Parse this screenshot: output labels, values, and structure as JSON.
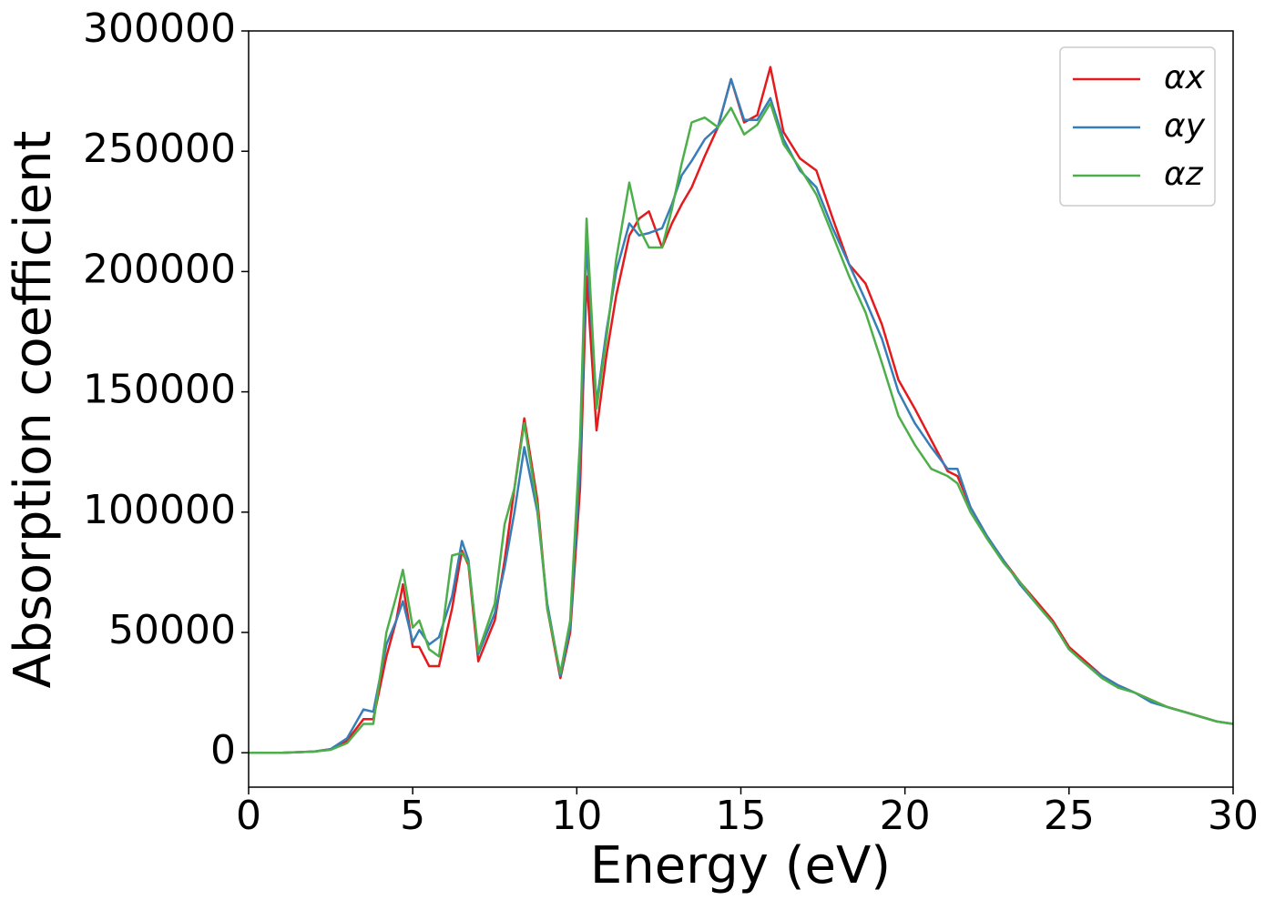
{
  "chart_data": {
    "type": "line",
    "xlabel": "Energy (eV)",
    "ylabel": "Absorption coefficient",
    "x": [
      0,
      1,
      2,
      2.5,
      3,
      3.5,
      3.8,
      4.2,
      4.5,
      4.7,
      5,
      5.2,
      5.5,
      5.8,
      6.2,
      6.5,
      6.7,
      7,
      7.5,
      7.8,
      8.1,
      8.4,
      8.8,
      9.1,
      9.5,
      9.8,
      10.1,
      10.3,
      10.6,
      10.9,
      11.2,
      11.6,
      11.9,
      12.2,
      12.6,
      12.9,
      13.2,
      13.5,
      13.9,
      14.3,
      14.7,
      15.1,
      15.5,
      15.9,
      16.3,
      16.8,
      17.3,
      17.8,
      18.3,
      18.8,
      19.3,
      19.8,
      20.3,
      20.8,
      21.3,
      21.6,
      22,
      22.5,
      23,
      23.5,
      24,
      24.5,
      25,
      25.5,
      26,
      26.5,
      27,
      27.5,
      28,
      28.5,
      29,
      29.5,
      30
    ],
    "series": [
      {
        "name": "αx",
        "color": "#e41a1c",
        "values": [
          0,
          0,
          500,
          1500,
          5000,
          14000,
          14000,
          40000,
          55000,
          70000,
          44000,
          44000,
          36000,
          36000,
          60000,
          84000,
          78000,
          38000,
          55000,
          80000,
          110000,
          139000,
          105000,
          60000,
          31000,
          50000,
          110000,
          198000,
          134000,
          165000,
          190000,
          215000,
          222000,
          225000,
          210000,
          220000,
          228000,
          235000,
          248000,
          260000,
          280000,
          262000,
          265000,
          285000,
          258000,
          247000,
          242000,
          222000,
          203000,
          195000,
          178000,
          155000,
          143000,
          130000,
          117000,
          115000,
          102000,
          90000,
          80000,
          71000,
          63000,
          55000,
          44000,
          38000,
          32000,
          28000,
          25000,
          22000,
          19000,
          17000,
          15000,
          13000,
          12000
        ]
      },
      {
        "name": "αy",
        "color": "#377eb8",
        "values": [
          0,
          0,
          500,
          1500,
          6000,
          18000,
          17000,
          45000,
          55000,
          63000,
          46000,
          51000,
          45000,
          48000,
          65000,
          88000,
          80000,
          41000,
          58000,
          77000,
          100000,
          127000,
          100000,
          62000,
          32000,
          52000,
          120000,
          212000,
          145000,
          175000,
          200000,
          220000,
          215000,
          216000,
          218000,
          228000,
          240000,
          246000,
          255000,
          260000,
          280000,
          263000,
          263000,
          272000,
          255000,
          242000,
          235000,
          218000,
          203000,
          188000,
          172000,
          150000,
          137000,
          127000,
          118000,
          118000,
          102000,
          90000,
          80000,
          70000,
          62000,
          54000,
          43000,
          37000,
          32000,
          28000,
          25000,
          21000,
          19000,
          17000,
          15000,
          13000,
          12000
        ]
      },
      {
        "name": "αz",
        "color": "#4daf4a",
        "values": [
          0,
          0,
          500,
          1200,
          4000,
          12000,
          12000,
          50000,
          65000,
          76000,
          52000,
          55000,
          43000,
          40000,
          82000,
          83000,
          79000,
          42000,
          62000,
          95000,
          110000,
          137000,
          102000,
          60000,
          33000,
          55000,
          130000,
          222000,
          143000,
          172000,
          205000,
          237000,
          218000,
          210000,
          210000,
          226000,
          245000,
          262000,
          264000,
          260000,
          268000,
          257000,
          261000,
          270000,
          253000,
          243000,
          232000,
          215000,
          198000,
          183000,
          162000,
          140000,
          128000,
          118000,
          115000,
          112000,
          100000,
          89000,
          79000,
          71000,
          62000,
          54000,
          43000,
          37000,
          31000,
          27000,
          25000,
          22000,
          19000,
          17000,
          15000,
          13000,
          12000
        ]
      }
    ],
    "xlim": [
      0,
      30
    ],
    "xticks": [
      0,
      5,
      10,
      15,
      20,
      25,
      30
    ],
    "ylim": [
      -14300,
      300000
    ],
    "yticks": [
      0,
      50000,
      100000,
      150000,
      200000,
      250000,
      300000
    ],
    "grid": false,
    "legend": "upper right"
  }
}
